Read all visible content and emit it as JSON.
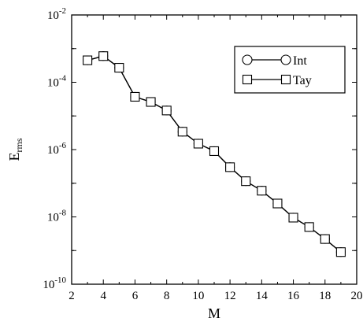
{
  "chart_data": {
    "type": "line",
    "xlabel": "M",
    "ylabel": "E",
    "ylabel_sub": "rms",
    "xlim": [
      2,
      20
    ],
    "ylim": [
      1e-10,
      0.01
    ],
    "yscale": "log",
    "grid": false,
    "legend_position": "top-right",
    "x_ticks": [
      "2",
      "4",
      "6",
      "8",
      "10",
      "12",
      "14",
      "16",
      "18",
      "20"
    ],
    "y_ticks": [
      {
        "base": "10",
        "exp": "-10"
      },
      {
        "base": "10",
        "exp": "-8"
      },
      {
        "base": "10",
        "exp": "-6"
      },
      {
        "base": "10",
        "exp": "-4"
      },
      {
        "base": "10",
        "exp": "-2"
      }
    ],
    "series": [
      {
        "name": "Int",
        "marker": "circle",
        "x": [
          3,
          4,
          5,
          6,
          7,
          8,
          9,
          10,
          11,
          12,
          13,
          14,
          15,
          16,
          17,
          18,
          19
        ],
        "y": [
          0.00045,
          0.0006,
          0.00027,
          3.7e-05,
          2.6e-05,
          1.45e-05,
          3.4e-06,
          1.5e-06,
          9e-07,
          3e-07,
          1.15e-07,
          6e-08,
          2.5e-08,
          9.5e-09,
          5e-09,
          2.2e-09,
          9e-10
        ]
      },
      {
        "name": "Tay",
        "marker": "square",
        "x": [
          3,
          4,
          5,
          6,
          7,
          8,
          9,
          10,
          11,
          12,
          13,
          14,
          15,
          16,
          17,
          18,
          19
        ],
        "y": [
          0.00045,
          0.0006,
          0.00027,
          3.7e-05,
          2.6e-05,
          1.45e-05,
          3.4e-06,
          1.5e-06,
          9e-07,
          3e-07,
          1.15e-07,
          6e-08,
          2.5e-08,
          9.5e-09,
          5e-09,
          2.2e-09,
          9e-10
        ]
      }
    ]
  }
}
